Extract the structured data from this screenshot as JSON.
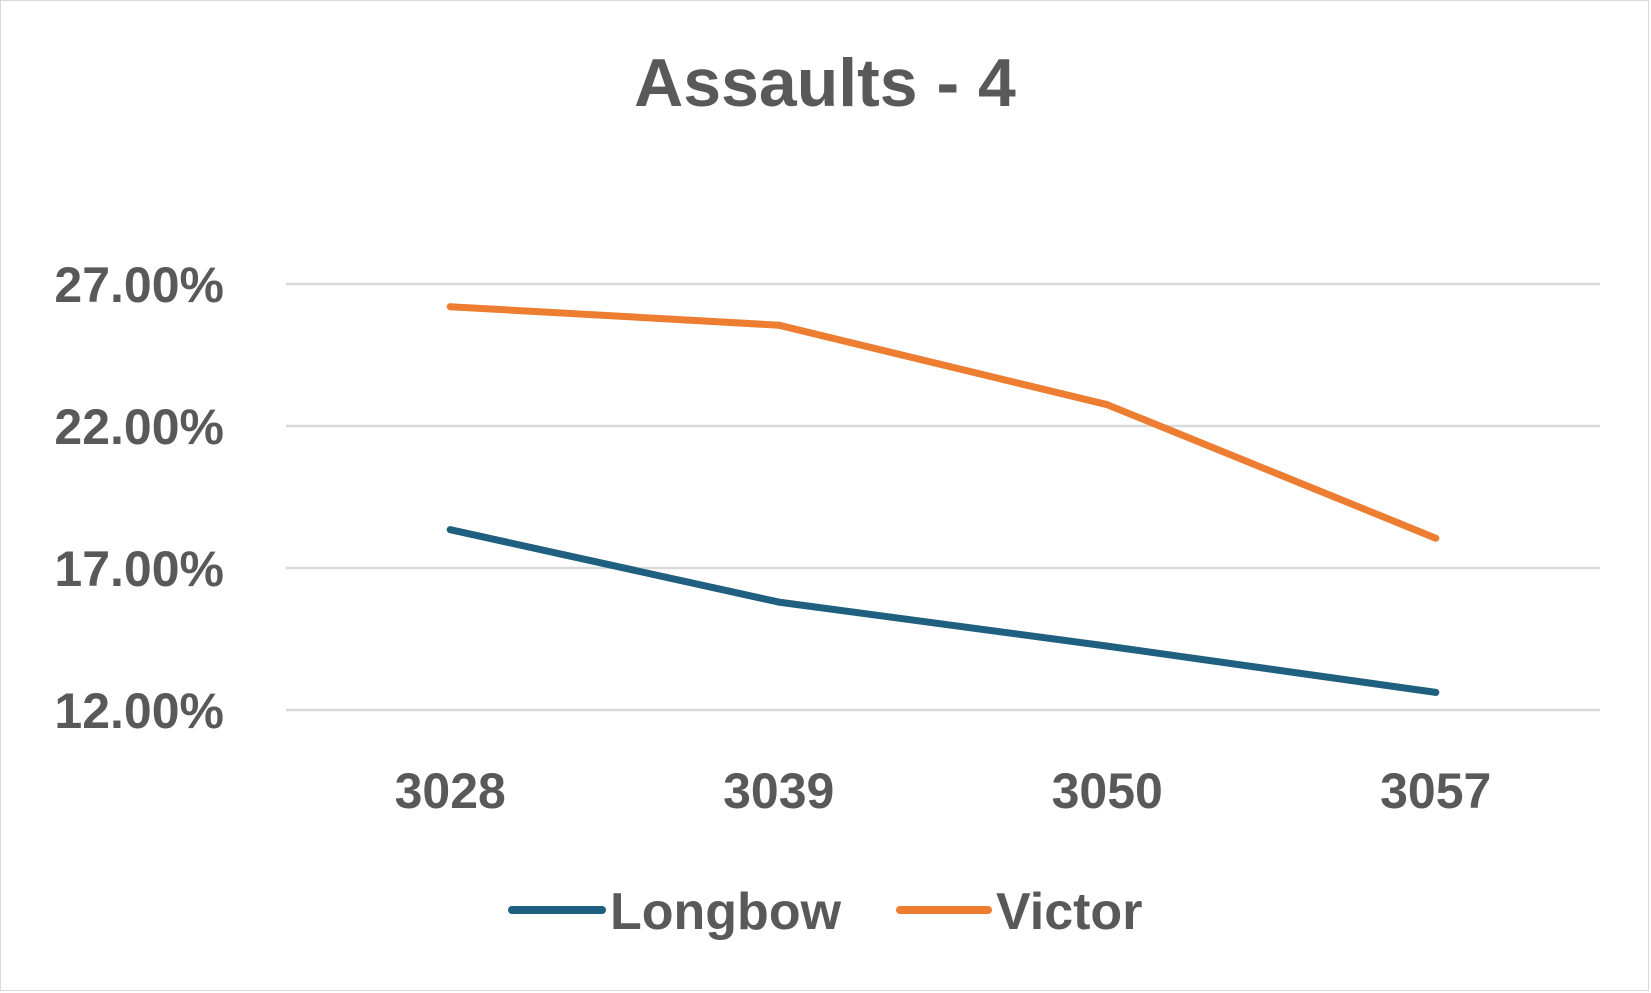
{
  "chart_data": {
    "type": "line",
    "title": "Assaults - 4",
    "xlabel": "",
    "ylabel": "",
    "categories": [
      "3028",
      "3039",
      "3050",
      "3057"
    ],
    "series": [
      {
        "name": "Longbow",
        "color": "#1f5f7f",
        "values": [
          0.1835,
          0.158,
          0.1425,
          0.1262
        ]
      },
      {
        "name": "Victor",
        "color": "#ed7d31",
        "values": [
          0.262,
          0.2555,
          0.2275,
          0.1805
        ]
      }
    ],
    "y_ticks": [
      0.12,
      0.17,
      0.22,
      0.27
    ],
    "y_tick_labels": [
      "12.00%",
      "17.00%",
      "22.00%",
      "27.00%"
    ],
    "ylim": [
      0.12,
      0.27
    ],
    "grid": true,
    "gridline_color": "#d9d9d9",
    "text_color": "#595959",
    "legend_position": "bottom"
  }
}
